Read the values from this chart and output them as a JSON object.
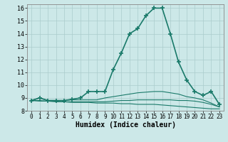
{
  "title": "",
  "xlabel": "Humidex (Indice chaleur)",
  "bg_color": "#cce8e8",
  "grid_color": "#aacccc",
  "line_color": "#1a7a6a",
  "xlim": [
    -0.5,
    23.5
  ],
  "ylim": [
    8,
    16.3
  ],
  "yticks": [
    8,
    9,
    10,
    11,
    12,
    13,
    14,
    15,
    16
  ],
  "xticks": [
    0,
    1,
    2,
    3,
    4,
    5,
    6,
    7,
    8,
    9,
    10,
    11,
    12,
    13,
    14,
    15,
    16,
    17,
    18,
    19,
    20,
    21,
    22,
    23
  ],
  "series": [
    [
      8.8,
      9.0,
      8.8,
      8.8,
      8.8,
      8.9,
      9.0,
      9.5,
      9.5,
      9.5,
      11.2,
      12.5,
      14.0,
      14.4,
      15.4,
      16.0,
      16.0,
      14.0,
      11.8,
      10.4,
      9.5,
      9.2,
      9.5,
      8.5
    ],
    [
      8.8,
      9.0,
      8.8,
      8.8,
      8.8,
      8.85,
      8.85,
      8.85,
      8.85,
      9.0,
      9.1,
      9.2,
      9.3,
      9.4,
      9.45,
      9.5,
      9.5,
      9.4,
      9.3,
      9.1,
      9.0,
      8.85,
      8.6,
      8.3
    ],
    [
      8.8,
      8.75,
      8.75,
      8.7,
      8.7,
      8.65,
      8.65,
      8.65,
      8.6,
      8.6,
      8.6,
      8.55,
      8.55,
      8.5,
      8.5,
      8.5,
      8.45,
      8.4,
      8.35,
      8.3,
      8.25,
      8.2,
      8.15,
      8.15
    ],
    [
      8.8,
      8.8,
      8.75,
      8.75,
      8.7,
      8.7,
      8.7,
      8.7,
      8.7,
      8.7,
      8.75,
      8.8,
      8.8,
      8.85,
      8.85,
      8.85,
      8.85,
      8.85,
      8.8,
      8.8,
      8.75,
      8.65,
      8.5,
      8.3
    ]
  ]
}
